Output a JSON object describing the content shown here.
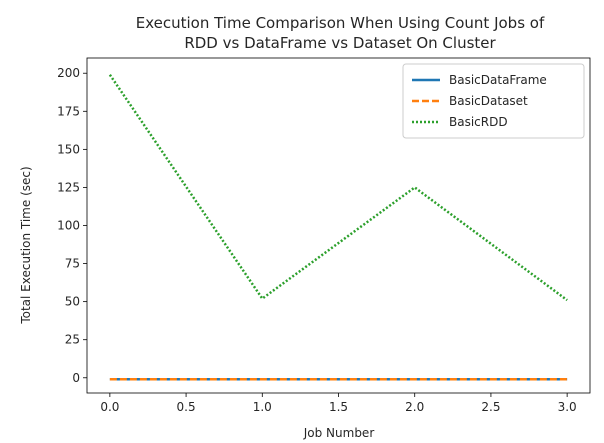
{
  "chart_data": {
    "type": "line",
    "title_lines": [
      "Execution Time Comparison When Using Count Jobs of",
      "RDD vs DataFrame vs Dataset On Cluster"
    ],
    "xlabel": "Job Number",
    "ylabel": "Total Execution Time (sec)",
    "xlim": [
      -0.15,
      3.15
    ],
    "ylim": [
      -10,
      210
    ],
    "xticks": [
      0.0,
      0.5,
      1.0,
      1.5,
      2.0,
      2.5,
      3.0
    ],
    "xtick_labels": [
      "0.0",
      "0.5",
      "1.0",
      "1.5",
      "2.0",
      "2.5",
      "3.0"
    ],
    "yticks": [
      0,
      25,
      50,
      75,
      100,
      125,
      150,
      175,
      200
    ],
    "ytick_labels": [
      "0",
      "25",
      "50",
      "75",
      "100",
      "125",
      "150",
      "175",
      "200"
    ],
    "grid": false,
    "legend_position": "upper-right",
    "x": [
      0,
      1,
      2,
      3
    ],
    "series": [
      {
        "name": "BasicDataFrame",
        "values": [
          -1,
          -1,
          -1,
          -1
        ],
        "color": "#1f77b4",
        "dash": "solid"
      },
      {
        "name": "BasicDataset",
        "values": [
          -1,
          -1,
          -1,
          -1
        ],
        "color": "#ff7f0e",
        "dash": "dashed"
      },
      {
        "name": "BasicRDD",
        "values": [
          199,
          52,
          125,
          51
        ],
        "color": "#2ca02c",
        "dash": "dotted"
      }
    ]
  }
}
